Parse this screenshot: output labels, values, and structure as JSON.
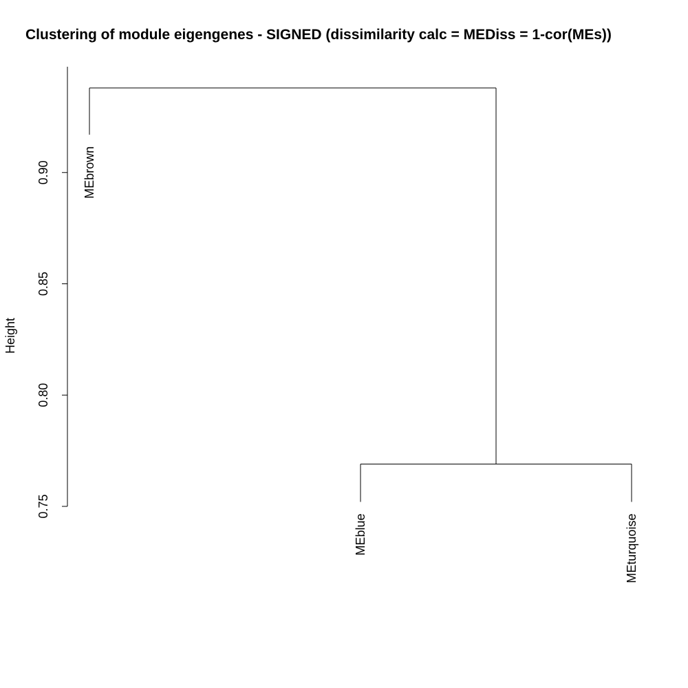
{
  "chart_data": {
    "type": "dendrogram",
    "title": "Clustering of module eigengenes - SIGNED (dissimilarity calc = MEDiss = 1-cor(MEs))",
    "ylabel": "Height",
    "xlabel": "",
    "ylim": [
      0.75,
      0.94
    ],
    "yticks": [
      {
        "value": 0.75,
        "label": "0.75"
      },
      {
        "value": 0.8,
        "label": "0.80"
      },
      {
        "value": 0.85,
        "label": "0.85"
      },
      {
        "value": 0.9,
        "label": "0.90"
      }
    ],
    "leaves": [
      {
        "name": "MEbrown",
        "order": 1,
        "leaf_height": 0.917
      },
      {
        "name": "MEblue",
        "order": 2,
        "leaf_height": 0.752
      },
      {
        "name": "MEturquoise",
        "order": 3,
        "leaf_height": 0.752
      }
    ],
    "merges": [
      {
        "left": "MEblue",
        "right": "MEturquoise",
        "height": 0.769
      },
      {
        "left": "MEbrown",
        "right": "MEblue+MEturquoise",
        "height": 0.938
      }
    ],
    "grid": false,
    "legend": "none"
  }
}
